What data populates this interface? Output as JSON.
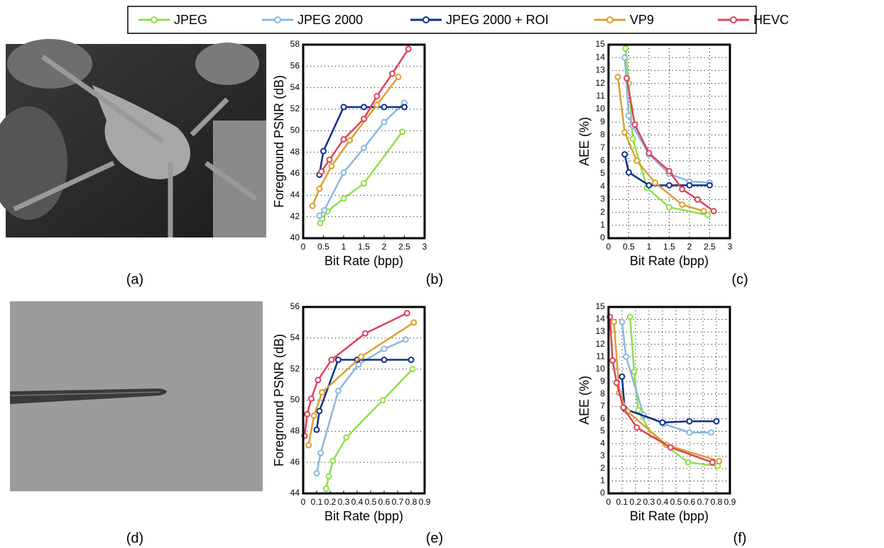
{
  "images": [
    {
      "caption": "(a)"
    },
    {
      "caption": "(d)"
    }
  ],
  "chart_data": [
    {
      "type": "line",
      "caption": "(b)",
      "x_label": "Bit Rate (bpp)",
      "y_label": "Foreground PSNR (dB)",
      "grid": "y",
      "xlim": [
        0,
        3
      ],
      "xticks": [
        0,
        0.5,
        1,
        1.5,
        2,
        2.5,
        3
      ],
      "ylim": [
        40,
        58
      ],
      "yticks": [
        40,
        42,
        44,
        46,
        48,
        50,
        52,
        54,
        56,
        58
      ],
      "series": [
        {
          "name": "JPEG",
          "color": "#8ee04a",
          "x": [
            0.42,
            0.47,
            0.6,
            1.0,
            1.5,
            2.45
          ],
          "values": [
            41.4,
            41.8,
            42.5,
            43.7,
            45.1,
            49.9
          ]
        },
        {
          "name": "JPEG 2000",
          "color": "#8ab8dc",
          "x": [
            0.4,
            0.52,
            1.0,
            1.5,
            2.0,
            2.5
          ],
          "values": [
            42.1,
            42.6,
            46.1,
            48.4,
            50.8,
            52.6
          ]
        },
        {
          "name": "JPEG 2000 + ROI",
          "color": "#0d2f8c",
          "x": [
            0.4,
            0.5,
            1.0,
            1.5,
            2.0,
            2.5
          ],
          "values": [
            45.9,
            48.1,
            52.2,
            52.2,
            52.2,
            52.2
          ]
        },
        {
          "name": "VP9",
          "color": "#d9a030",
          "x": [
            0.23,
            0.4,
            0.7,
            1.15,
            1.82,
            2.35
          ],
          "values": [
            43.0,
            44.6,
            46.7,
            49.1,
            52.4,
            55.0
          ]
        },
        {
          "name": "HEVC",
          "color": "#e0405a",
          "x": [
            0.45,
            0.65,
            1.0,
            1.5,
            1.82,
            2.2,
            2.6
          ],
          "values": [
            46.2,
            47.3,
            49.2,
            51.1,
            53.2,
            55.3,
            57.6
          ]
        }
      ]
    },
    {
      "type": "line",
      "caption": "(c)",
      "x_label": "Bit Rate (bpp)",
      "y_label": "AEE (%)",
      "grid": "both",
      "xlim": [
        0,
        3
      ],
      "xticks": [
        0,
        0.5,
        1,
        1.5,
        2,
        2.5,
        3
      ],
      "ylim": [
        0,
        15
      ],
      "yticks": [
        0,
        1,
        2,
        3,
        4,
        5,
        6,
        7,
        8,
        9,
        10,
        11,
        12,
        13,
        14,
        15
      ],
      "series": [
        {
          "name": "JPEG",
          "color": "#8ee04a",
          "x": [
            0.42,
            0.5,
            0.6,
            0.95,
            1.5,
            2.45
          ],
          "values": [
            14.7,
            12.0,
            7.7,
            3.9,
            2.4,
            1.8
          ]
        },
        {
          "name": "JPEG 2000",
          "color": "#8ab8dc",
          "x": [
            0.4,
            0.5,
            0.6,
            1.0,
            1.5,
            2.0,
            2.5
          ],
          "values": [
            14.0,
            9.5,
            8.7,
            6.5,
            5.0,
            4.4,
            4.3
          ]
        },
        {
          "name": "JPEG 2000 + ROI",
          "color": "#0d2f8c",
          "x": [
            0.4,
            0.5,
            1.0,
            1.5,
            2.0,
            2.5
          ],
          "values": [
            6.5,
            5.1,
            4.1,
            4.1,
            4.1,
            4.1
          ]
        },
        {
          "name": "VP9",
          "color": "#d9a030",
          "x": [
            0.23,
            0.4,
            0.7,
            1.15,
            1.82,
            2.35
          ],
          "values": [
            12.5,
            8.2,
            6.0,
            4.3,
            2.6,
            2.1
          ]
        },
        {
          "name": "HEVC",
          "color": "#e0405a",
          "x": [
            0.45,
            0.65,
            1.0,
            1.5,
            1.82,
            2.2,
            2.6
          ],
          "values": [
            12.4,
            8.8,
            6.6,
            5.2,
            3.8,
            3.0,
            2.1
          ]
        }
      ]
    },
    {
      "type": "line",
      "caption": "(e)",
      "x_label": "Bit Rate (bpp)",
      "y_label": "Foreground PSNR (dB)",
      "grid": "y",
      "xlim": [
        0,
        0.9
      ],
      "xticks": [
        0,
        0.1,
        0.2,
        0.3,
        0.4,
        0.5,
        0.6,
        0.7,
        0.8,
        0.9
      ],
      "ylim": [
        44,
        56
      ],
      "yticks": [
        44,
        46,
        48,
        50,
        52,
        54,
        56
      ],
      "series": [
        {
          "name": "JPEG",
          "color": "#8ee04a",
          "x": [
            0.17,
            0.19,
            0.22,
            0.32,
            0.59,
            0.81
          ],
          "values": [
            44.3,
            45.1,
            46.1,
            47.6,
            50.0,
            52.0
          ]
        },
        {
          "name": "JPEG 2000",
          "color": "#8ab8dc",
          "x": [
            0.1,
            0.13,
            0.26,
            0.41,
            0.6,
            0.76
          ],
          "values": [
            45.3,
            46.6,
            50.6,
            52.3,
            53.3,
            53.9
          ]
        },
        {
          "name": "JPEG 2000 + ROI",
          "color": "#0d2f8c",
          "x": [
            0.1,
            0.12,
            0.26,
            0.4,
            0.6,
            0.8
          ],
          "values": [
            48.1,
            49.3,
            52.6,
            52.6,
            52.6,
            52.6
          ]
        },
        {
          "name": "VP9",
          "color": "#d9a030",
          "x": [
            0.04,
            0.08,
            0.14,
            0.43,
            0.82
          ],
          "values": [
            47.1,
            49.0,
            50.5,
            52.8,
            55.0
          ]
        },
        {
          "name": "HEVC",
          "color": "#e0405a",
          "x": [
            0.01,
            0.03,
            0.06,
            0.11,
            0.21,
            0.46,
            0.77
          ],
          "values": [
            47.7,
            49.1,
            50.1,
            51.3,
            52.6,
            54.3,
            55.6
          ]
        }
      ]
    },
    {
      "type": "line",
      "caption": "(f)",
      "x_label": "Bit Rate (bpp)",
      "y_label": "AEE (%)",
      "grid": "both",
      "xlim": [
        0,
        0.9
      ],
      "xticks": [
        0,
        0.1,
        0.2,
        0.3,
        0.4,
        0.5,
        0.6,
        0.7,
        0.8,
        0.9
      ],
      "ylim": [
        0,
        15
      ],
      "yticks": [
        0,
        1,
        2,
        3,
        4,
        5,
        6,
        7,
        8,
        9,
        10,
        11,
        12,
        13,
        14,
        15
      ],
      "series": [
        {
          "name": "JPEG",
          "color": "#8ee04a",
          "x": [
            0.16,
            0.19,
            0.22,
            0.32,
            0.59,
            0.81
          ],
          "values": [
            14.2,
            9.8,
            6.7,
            4.7,
            2.5,
            2.2
          ]
        },
        {
          "name": "JPEG 2000",
          "color": "#8ab8dc",
          "x": [
            0.1,
            0.13,
            0.26,
            0.41,
            0.6,
            0.76
          ],
          "values": [
            13.8,
            11.0,
            6.3,
            5.6,
            4.9,
            4.9
          ]
        },
        {
          "name": "JPEG 2000 + ROI",
          "color": "#0d2f8c",
          "x": [
            0.1,
            0.12,
            0.4,
            0.6,
            0.8
          ],
          "values": [
            9.4,
            6.8,
            5.7,
            5.8,
            5.8
          ]
        },
        {
          "name": "VP9",
          "color": "#d9a030",
          "x": [
            0.04,
            0.08,
            0.14,
            0.43,
            0.82
          ],
          "values": [
            13.8,
            8.1,
            6.6,
            3.9,
            2.6
          ]
        },
        {
          "name": "HEVC",
          "color": "#e0405a",
          "x": [
            0.01,
            0.03,
            0.06,
            0.11,
            0.21,
            0.46,
            0.77
          ],
          "values": [
            14.2,
            10.7,
            8.9,
            6.9,
            5.3,
            3.7,
            2.5
          ]
        }
      ]
    }
  ]
}
